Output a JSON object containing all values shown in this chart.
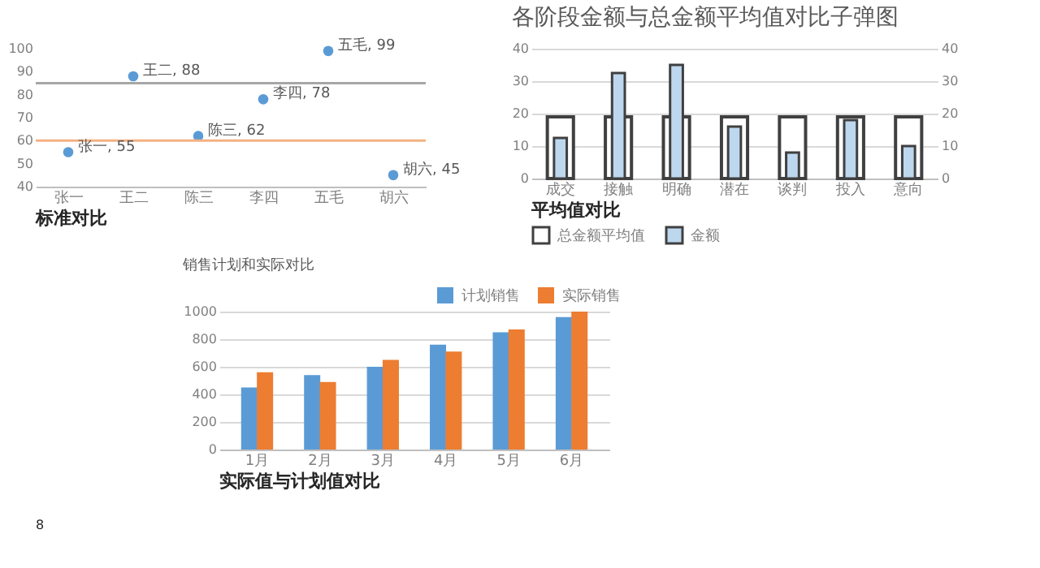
{
  "chart_data": [
    {
      "type": "scatter",
      "categories": [
        "张一",
        "王二",
        "陈三",
        "李四",
        "五毛",
        "胡六"
      ],
      "series": [
        {
          "color": "#5b9bd5",
          "values": [
            55,
            88,
            62,
            78,
            99,
            45
          ],
          "value_labels": [
            "张一, 55",
            "王二, 88",
            "陈三, 62",
            "李四, 78",
            "五毛, 99",
            "胡六, 45"
          ]
        }
      ],
      "ylim": [
        40,
        100
      ],
      "yticks": [
        40,
        50,
        60,
        70,
        80,
        90,
        100
      ],
      "grid": false,
      "marker": "circle",
      "ref_lines": [
        {
          "axis": "y",
          "value": 85,
          "color": "#a6a6a6"
        },
        {
          "axis": "y",
          "value": 60,
          "color": "#f4b183"
        }
      ],
      "annotations": [
        "标准对比"
      ]
    },
    {
      "type": "bar",
      "title": "各阶段金额与总金额平均值对比子弹图",
      "categories": [
        "成交",
        "接触",
        "明确",
        "潜在",
        "谈判",
        "投入",
        "意向"
      ],
      "series": [
        {
          "name": "总金额平均值",
          "color": "#ffffff",
          "values": [
            19,
            19,
            19,
            19,
            19,
            19,
            19
          ]
        },
        {
          "name": "金额",
          "color": "#bdd7ee",
          "axis": "y2",
          "values": [
            12.5,
            32.5,
            35,
            16,
            8,
            18,
            10
          ]
        }
      ],
      "ylim": [
        0,
        40
      ],
      "yticks": [
        0,
        10,
        20,
        30,
        40
      ],
      "y2lim": [
        0,
        40
      ],
      "y2ticks": [
        0,
        10,
        20,
        30,
        40
      ],
      "grid": "y",
      "legend": "bottom",
      "annotations": [
        "平均值对比"
      ]
    },
    {
      "type": "bar",
      "title": "销售计划和实际对比",
      "categories": [
        "1月",
        "2月",
        "3月",
        "4月",
        "5月",
        "6月"
      ],
      "series": [
        {
          "name": "计划销售",
          "color": "#5b9bd5",
          "values": [
            450,
            540,
            600,
            760,
            850,
            960
          ]
        },
        {
          "name": "实际销售",
          "color": "#ed7d31",
          "values": [
            560,
            490,
            650,
            710,
            870,
            1000
          ]
        }
      ],
      "ylim": [
        0,
        1000
      ],
      "yticks": [
        0,
        200,
        400,
        600,
        800,
        1000
      ],
      "grid": "y",
      "legend": "top right",
      "annotations": [
        "实际值与计划值对比",
        "8"
      ]
    }
  ]
}
